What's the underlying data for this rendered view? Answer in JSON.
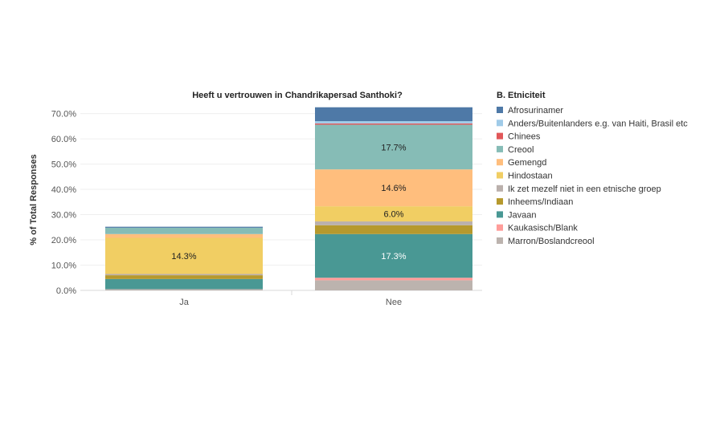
{
  "chart_data": {
    "type": "bar",
    "stacked": true,
    "title": "Heeft u vertrouwen in Chandrikapersad Santhoki?",
    "ylabel": "% of Total Responses",
    "xlabel": "",
    "ylim": [
      0,
      74
    ],
    "y_ticks": [
      "0.0%",
      "10.0%",
      "20.0%",
      "30.0%",
      "40.0%",
      "50.0%",
      "60.0%",
      "70.0%"
    ],
    "y_tick_values": [
      0,
      10,
      20,
      30,
      40,
      50,
      60,
      70
    ],
    "categories": [
      "Ja",
      "Nee"
    ],
    "legend_title": "B. Etniciteit",
    "legend_position": "right",
    "grid": true,
    "series": [
      {
        "name": "Afrosurinamer",
        "color": "#4e79a7",
        "values": [
          0.4,
          5.5
        ]
      },
      {
        "name": "Anders/Buitenlanders e.g. van Haiti, Brasil etc",
        "color": "#a0cbe8",
        "values": [
          0.0,
          0.9
        ]
      },
      {
        "name": "Chinees",
        "color": "#e15759",
        "values": [
          0.0,
          0.5
        ]
      },
      {
        "name": "Creool",
        "color": "#86bcb6",
        "values": [
          2.5,
          17.7
        ]
      },
      {
        "name": "Gemengd",
        "color": "#ffbe7d",
        "values": [
          1.5,
          14.6
        ]
      },
      {
        "name": "Hindostaan",
        "color": "#f1ce63",
        "values": [
          14.3,
          6.0
        ]
      },
      {
        "name": "Ik zet mezelf niet in een etnische groep",
        "color": "#bab0ac",
        "values": [
          0.5,
          1.5
        ]
      },
      {
        "name": "Inheems/Indiaan",
        "color": "#b6992d",
        "values": [
          1.5,
          3.5
        ]
      },
      {
        "name": "Javaan",
        "color": "#499894",
        "values": [
          4.0,
          17.3
        ]
      },
      {
        "name": "Kaukasisch/Blank",
        "color": "#ff9d9a",
        "values": [
          0.0,
          1.0
        ]
      },
      {
        "name": "Marron/Boslandcreool",
        "color": "#bcb3ae",
        "values": [
          0.5,
          4.0
        ]
      }
    ],
    "data_labels": [
      {
        "category": "Ja",
        "series": "Hindostaan",
        "text": "14.3%"
      },
      {
        "category": "Nee",
        "series": "Creool",
        "text": "17.7%"
      },
      {
        "category": "Nee",
        "series": "Gemengd",
        "text": "14.6%"
      },
      {
        "category": "Nee",
        "series": "Hindostaan",
        "text": "6.0%"
      },
      {
        "category": "Nee",
        "series": "Javaan",
        "text": "17.3%"
      }
    ]
  }
}
